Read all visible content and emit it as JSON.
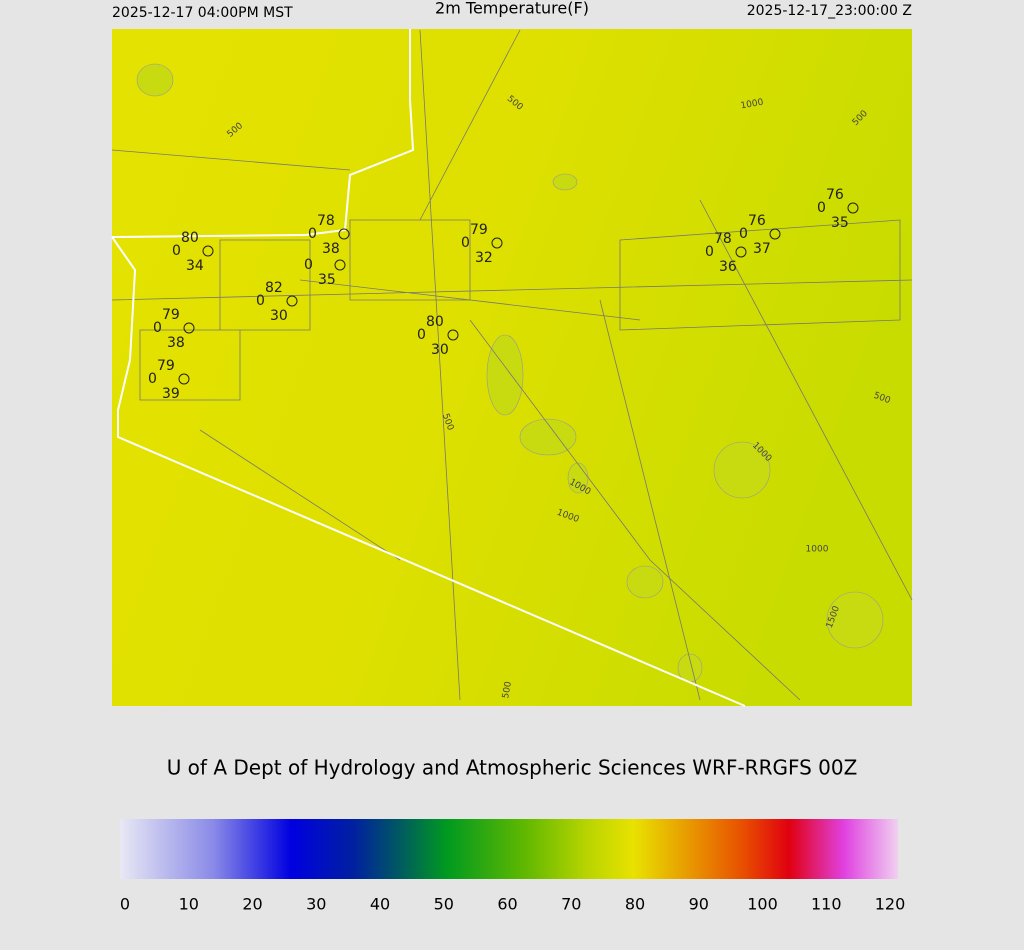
{
  "header": {
    "valid_local": "2025-12-17 04:00PM MST",
    "title": "2m Temperature(F)",
    "valid_utc": "2025-12-17_23:00:00 Z"
  },
  "stations": [
    {
      "temperature": 80,
      "cloud": 0,
      "dewpoint": 34
    },
    {
      "temperature": 78,
      "cloud": 0,
      "dewpoint": 38
    },
    {
      "cloud": 0,
      "dewpoint": 35
    },
    {
      "temperature": 82,
      "cloud": 0,
      "dewpoint": 30
    },
    {
      "temperature": 79,
      "cloud": 0,
      "dewpoint": 38
    },
    {
      "temperature": 79,
      "cloud": 0,
      "dewpoint": 39
    },
    {
      "temperature": 80,
      "cloud": 0,
      "dewpoint": 30
    },
    {
      "temperature": 79,
      "cloud": 0,
      "dewpoint": 32
    },
    {
      "temperature": 78,
      "cloud": 0,
      "dewpoint": 36
    },
    {
      "temperature": 76,
      "cloud": 0,
      "dewpoint": 37
    },
    {
      "temperature": 76,
      "cloud": 0,
      "dewpoint": 35
    }
  ],
  "contour_labels": [
    500,
    500,
    1000,
    500,
    500,
    500,
    1000,
    1000,
    1000,
    1000,
    1500,
    500
  ],
  "footer": "U of A Dept of Hydrology and Atmospheric Sciences WRF-RRGFS 00Z",
  "colorbar": {
    "ticks": [
      0,
      10,
      20,
      30,
      40,
      50,
      60,
      70,
      80,
      90,
      100,
      110,
      120
    ]
  }
}
